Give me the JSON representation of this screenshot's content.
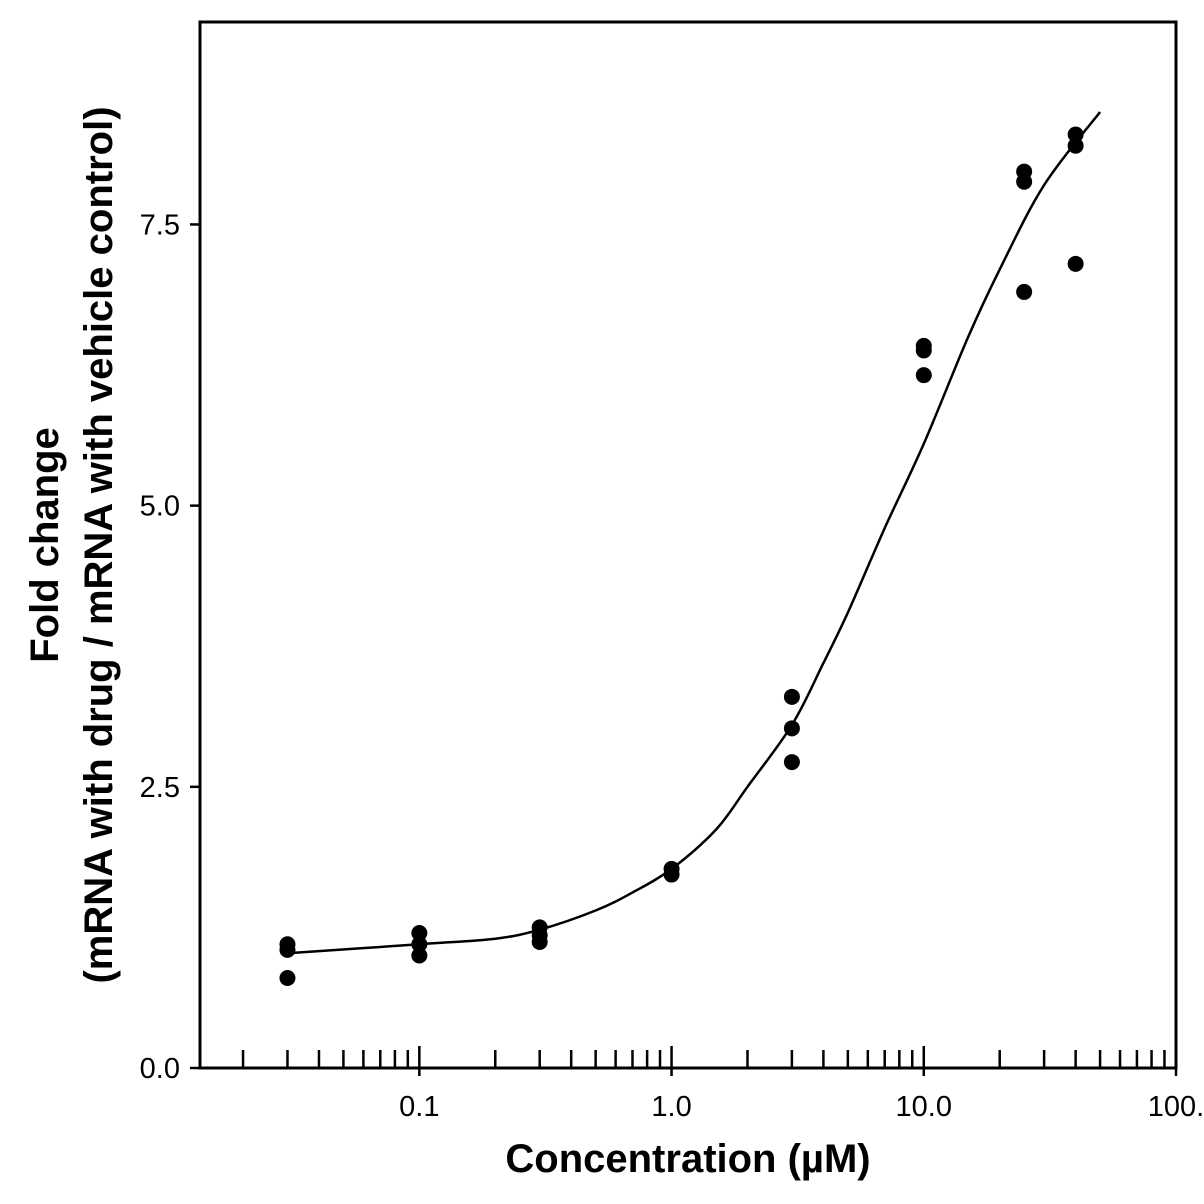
{
  "chart_data": {
    "type": "scatter",
    "title": "",
    "xlabel": "Concentration (µM)",
    "ylabel_line1": "Fold change",
    "ylabel_line2": "(mRNA with drug / mRNA with vehicle control)",
    "xscale": "log",
    "xlim": [
      0.0135,
      100
    ],
    "ylim": [
      0,
      9.3
    ],
    "x_ticks": [
      {
        "value": 0.1,
        "label": "0.1"
      },
      {
        "value": 1,
        "label": "1.0"
      },
      {
        "value": 10,
        "label": "10.0"
      },
      {
        "value": 100,
        "label": "100."
      }
    ],
    "y_ticks": [
      {
        "value": 0,
        "label": "0.0"
      },
      {
        "value": 2.5,
        "label": "2.5"
      },
      {
        "value": 5,
        "label": "5.0"
      },
      {
        "value": 7.5,
        "label": "7.5"
      }
    ],
    "grid": false,
    "legend": "none",
    "series": [
      {
        "kind": "points",
        "points": [
          {
            "x": 0.03,
            "y": 1.1
          },
          {
            "x": 0.03,
            "y": 1.05
          },
          {
            "x": 0.03,
            "y": 0.8
          },
          {
            "x": 0.1,
            "y": 1.2
          },
          {
            "x": 0.1,
            "y": 1.1
          },
          {
            "x": 0.1,
            "y": 1.0
          },
          {
            "x": 0.3,
            "y": 1.25
          },
          {
            "x": 0.3,
            "y": 1.18
          },
          {
            "x": 0.3,
            "y": 1.12
          },
          {
            "x": 1,
            "y": 1.77
          },
          {
            "x": 1,
            "y": 1.72
          },
          {
            "x": 3,
            "y": 3.3
          },
          {
            "x": 3,
            "y": 3.02
          },
          {
            "x": 3,
            "y": 2.72
          },
          {
            "x": 10,
            "y": 6.42
          },
          {
            "x": 10,
            "y": 6.38
          },
          {
            "x": 10,
            "y": 6.16
          },
          {
            "x": 25,
            "y": 7.97
          },
          {
            "x": 25,
            "y": 7.88
          },
          {
            "x": 25,
            "y": 6.9
          },
          {
            "x": 40,
            "y": 8.3
          },
          {
            "x": 40,
            "y": 8.2
          },
          {
            "x": 40,
            "y": 7.15
          }
        ]
      },
      {
        "kind": "fit-curve",
        "points": [
          {
            "x": 0.03,
            "y": 1.02
          },
          {
            "x": 0.1,
            "y": 1.1
          },
          {
            "x": 0.2,
            "y": 1.15
          },
          {
            "x": 0.3,
            "y": 1.23
          },
          {
            "x": 0.5,
            "y": 1.4
          },
          {
            "x": 0.7,
            "y": 1.56
          },
          {
            "x": 1,
            "y": 1.77
          },
          {
            "x": 1.5,
            "y": 2.12
          },
          {
            "x": 2,
            "y": 2.5
          },
          {
            "x": 3,
            "y": 3.05
          },
          {
            "x": 4,
            "y": 3.6
          },
          {
            "x": 5,
            "y": 4.05
          },
          {
            "x": 7,
            "y": 4.8
          },
          {
            "x": 10,
            "y": 5.55
          },
          {
            "x": 15,
            "y": 6.5
          },
          {
            "x": 20,
            "y": 7.1
          },
          {
            "x": 30,
            "y": 7.85
          },
          {
            "x": 50,
            "y": 8.5
          }
        ]
      }
    ]
  }
}
